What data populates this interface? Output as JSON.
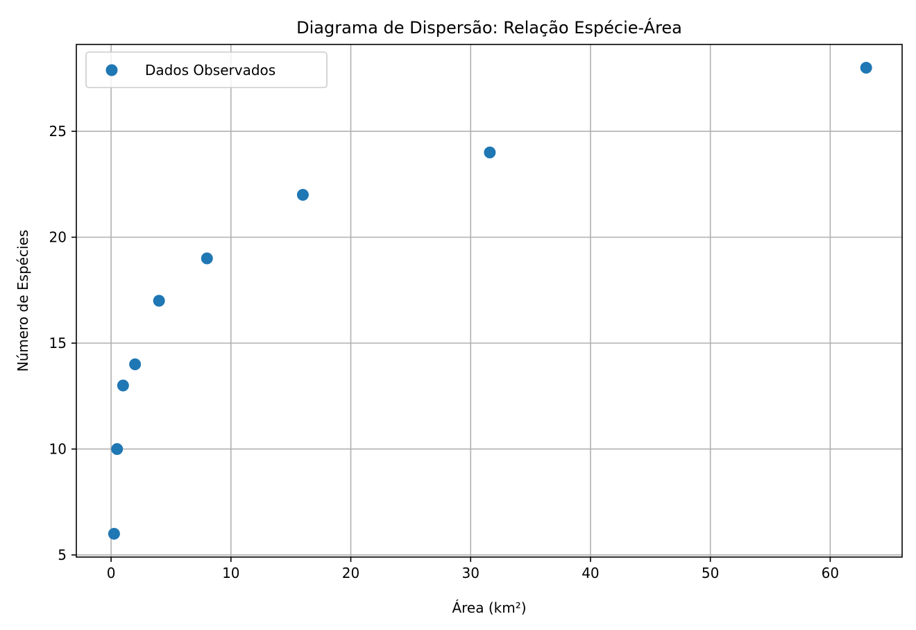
{
  "chart_data": {
    "type": "scatter",
    "title": "Diagrama de Dispersão: Relação Espécie-Área",
    "xlabel": "Área (km²)",
    "ylabel": "Número de Espécies",
    "xlim": [
      -2.9,
      66
    ],
    "ylim": [
      4.9,
      29.1
    ],
    "xticks": [
      0,
      10,
      20,
      30,
      40,
      50,
      60
    ],
    "yticks": [
      5,
      10,
      15,
      20,
      25
    ],
    "grid": true,
    "legend_position": "upper-left",
    "series": [
      {
        "name": "Dados Observados",
        "color": "#1f77b4",
        "x": [
          0.25,
          0.5,
          1,
          2,
          4,
          8,
          16,
          31.6,
          63
        ],
        "y": [
          6,
          10,
          13,
          14,
          17,
          19,
          22,
          24,
          28
        ]
      }
    ]
  }
}
